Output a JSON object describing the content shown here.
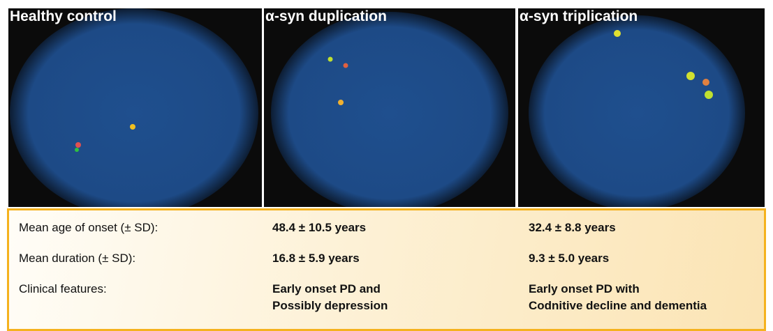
{
  "panels": [
    {
      "title": "Healthy control"
    },
    {
      "title": "α-syn duplication"
    },
    {
      "title": "α-syn triplication"
    }
  ],
  "table": {
    "rows": [
      {
        "label": "Mean age of onset (± SD):",
        "values": [
          [
            "48.4 ± 10.5 years"
          ],
          [
            "32.4 ± 8.8 years"
          ]
        ]
      },
      {
        "label": "Mean duration (± SD):",
        "values": [
          [
            "16.8 ± 5.9 years"
          ],
          [
            "9.3 ± 5.0 years"
          ]
        ]
      },
      {
        "label": "Clinical features:",
        "values": [
          [
            "Early onset PD and",
            "Possibly depression"
          ],
          [
            "Early onset PD with",
            "Codnitive decline and dementia"
          ]
        ]
      }
    ]
  }
}
